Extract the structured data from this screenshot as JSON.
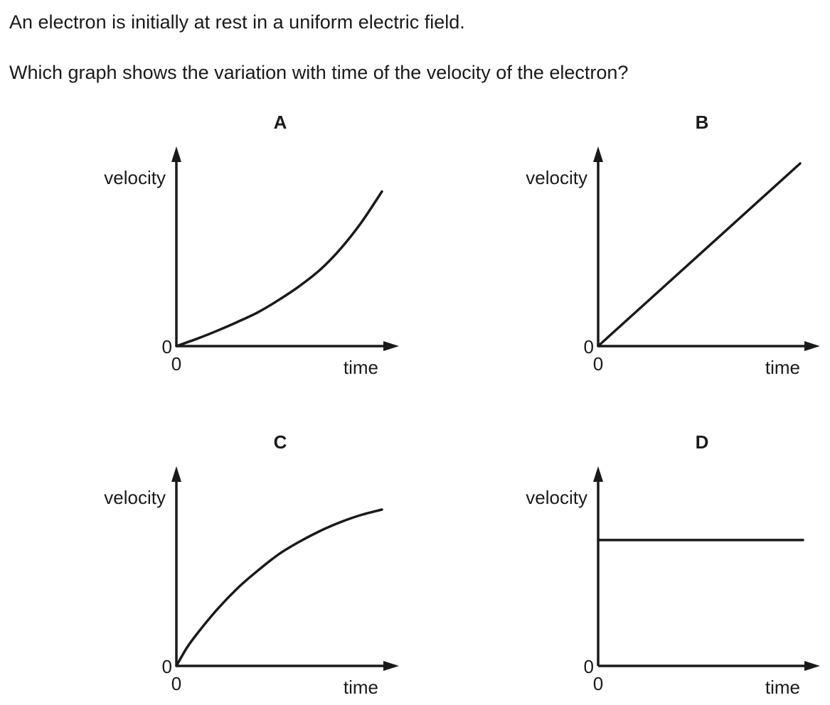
{
  "question": {
    "intro": "An electron is initially at rest in a uniform electric field.",
    "prompt": "Which graph shows the variation with time of the velocity of the electron?"
  },
  "chart_data": [
    {
      "type": "line",
      "label": "A",
      "xlabel": "time",
      "ylabel": "velocity",
      "x_origin_label": "0",
      "y_origin_label": "0",
      "series": [
        {
          "x": [
            0,
            0.1,
            0.2,
            0.3,
            0.4,
            0.5,
            0.6,
            0.7,
            0.8,
            0.9,
            1.0
          ],
          "y": [
            0,
            0.045,
            0.095,
            0.15,
            0.21,
            0.285,
            0.37,
            0.47,
            0.6,
            0.76,
            0.95
          ]
        }
      ]
    },
    {
      "type": "line",
      "label": "B",
      "xlabel": "time",
      "ylabel": "velocity",
      "x_origin_label": "0",
      "y_origin_label": "0",
      "series": [
        {
          "x": [
            0,
            1.0
          ],
          "y": [
            0,
            1.0
          ]
        }
      ]
    },
    {
      "type": "line",
      "label": "C",
      "xlabel": "time",
      "ylabel": "velocity",
      "x_origin_label": "0",
      "y_origin_label": "0",
      "series": [
        {
          "x": [
            0,
            0.05,
            0.1,
            0.2,
            0.3,
            0.4,
            0.5,
            0.6,
            0.7,
            0.8,
            0.9,
            1.0
          ],
          "y": [
            0,
            0.1,
            0.18,
            0.32,
            0.44,
            0.54,
            0.63,
            0.7,
            0.76,
            0.81,
            0.85,
            0.88
          ]
        }
      ]
    },
    {
      "type": "line",
      "label": "D",
      "xlabel": "time",
      "ylabel": "velocity",
      "x_origin_label": "0",
      "y_origin_label": "0",
      "series": [
        {
          "x": [
            0,
            1.0
          ],
          "y": [
            0.7,
            0.7
          ]
        }
      ]
    }
  ]
}
